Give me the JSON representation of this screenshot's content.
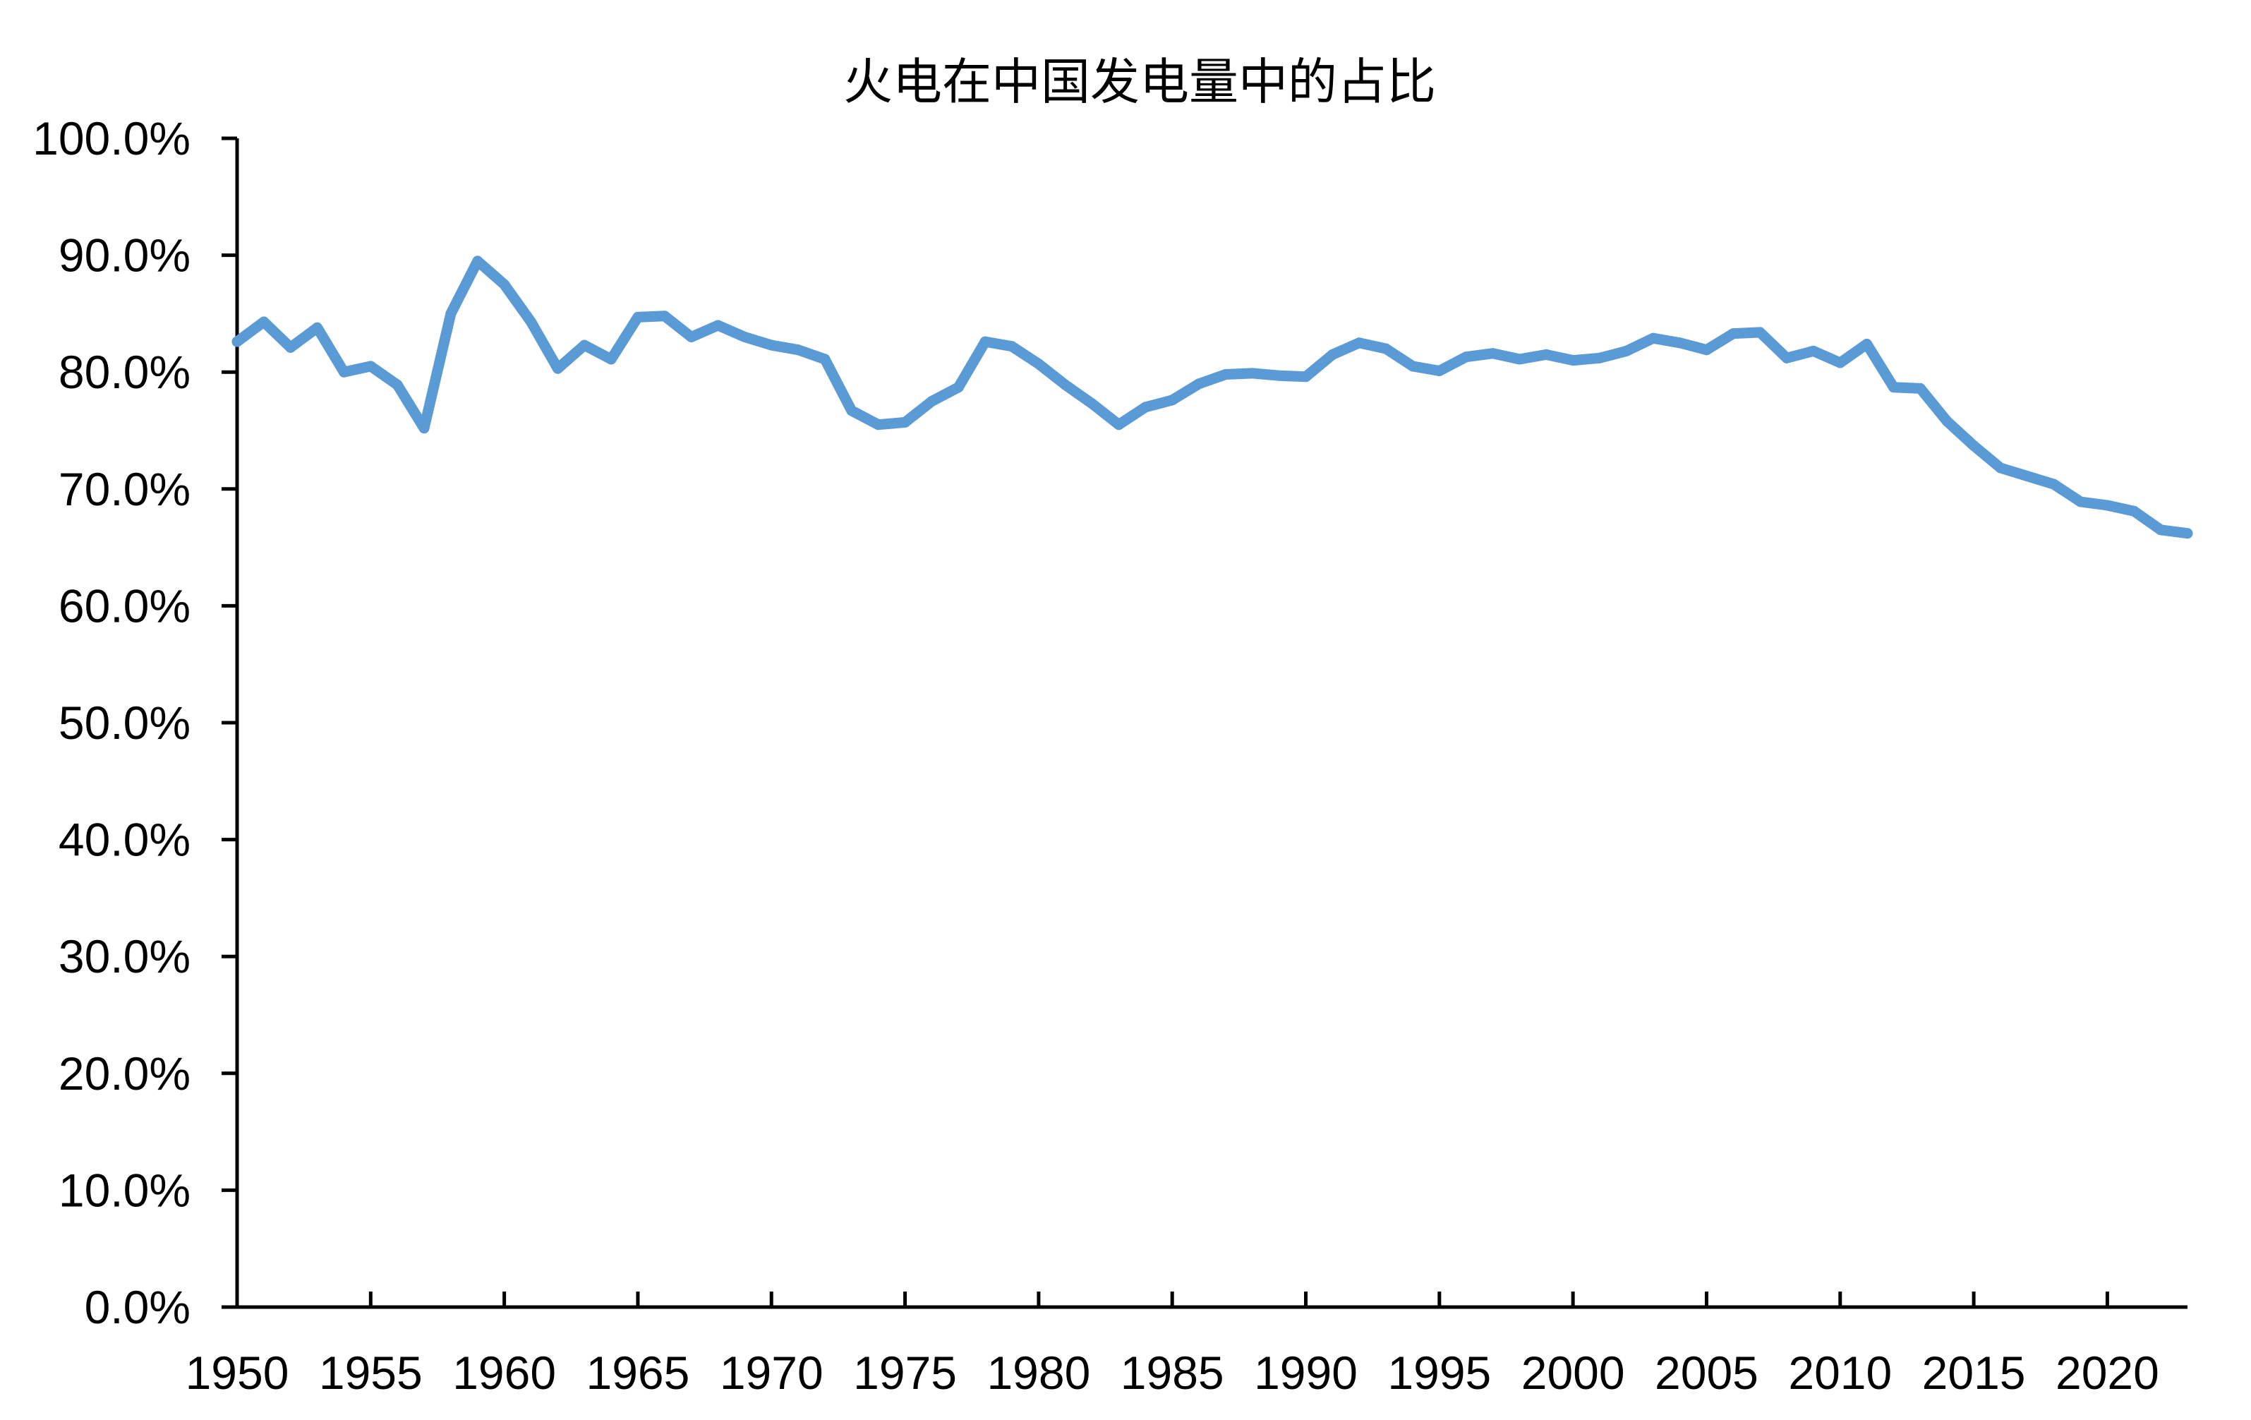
{
  "chart_data": {
    "type": "line",
    "title": "火电在中国发电量中的占比",
    "xlabel": "",
    "ylabel": "",
    "xlim": [
      1950,
      2023
    ],
    "ylim": [
      0,
      100
    ],
    "y_tick_values": [
      0,
      10,
      20,
      30,
      40,
      50,
      60,
      70,
      80,
      90,
      100
    ],
    "y_tick_labels": [
      "0.0%",
      "10.0%",
      "20.0%",
      "30.0%",
      "40.0%",
      "50.0%",
      "60.0%",
      "70.0%",
      "80.0%",
      "90.0%",
      "100.0%"
    ],
    "x_tick_values": [
      1950,
      1955,
      1960,
      1965,
      1970,
      1975,
      1980,
      1985,
      1990,
      1995,
      2000,
      2005,
      2010,
      2015,
      2020
    ],
    "x_tick_labels": [
      "1950",
      "1955",
      "1960",
      "1965",
      "1970",
      "1975",
      "1980",
      "1985",
      "1990",
      "1995",
      "2000",
      "2005",
      "2010",
      "2015",
      "2020"
    ],
    "grid": false,
    "line_color": "#5B9BD5",
    "axis_color": "#000000",
    "series": [
      {
        "x": [
          1950,
          1951,
          1952,
          1953,
          1954,
          1955,
          1956,
          1957,
          1958,
          1959,
          1960,
          1961,
          1962,
          1963,
          1964,
          1965,
          1966,
          1967,
          1968,
          1969,
          1970,
          1971,
          1972,
          1973,
          1974,
          1975,
          1976,
          1977,
          1978,
          1979,
          1980,
          1981,
          1982,
          1983,
          1984,
          1985,
          1986,
          1987,
          1988,
          1989,
          1990,
          1991,
          1992,
          1993,
          1994,
          1995,
          1996,
          1997,
          1998,
          1999,
          2000,
          2001,
          2002,
          2003,
          2004,
          2005,
          2006,
          2007,
          2008,
          2009,
          2010,
          2011,
          2012,
          2013,
          2014,
          2015,
          2016,
          2017,
          2018,
          2019,
          2020,
          2021,
          2022,
          2023
        ],
        "values": [
          82.6,
          84.3,
          82.1,
          83.8,
          80.0,
          80.5,
          78.9,
          75.2,
          85.0,
          89.5,
          87.5,
          84.3,
          80.3,
          82.3,
          81.1,
          84.7,
          84.8,
          83.0,
          84.0,
          83.0,
          82.3,
          81.9,
          81.1,
          76.7,
          75.5,
          75.7,
          77.5,
          78.7,
          82.6,
          82.2,
          80.7,
          78.9,
          77.3,
          75.5,
          77.0,
          77.6,
          79.0,
          79.8,
          79.9,
          79.7,
          79.6,
          81.5,
          82.5,
          82.0,
          80.5,
          80.1,
          81.3,
          81.6,
          81.1,
          81.5,
          81.0,
          81.2,
          81.8,
          82.9,
          82.5,
          81.9,
          83.3,
          83.4,
          81.2,
          81.8,
          80.8,
          82.4,
          78.7,
          78.6,
          75.8,
          73.7,
          71.8,
          71.1,
          70.4,
          68.9,
          68.6,
          68.1,
          66.5,
          66.2
        ]
      }
    ]
  }
}
